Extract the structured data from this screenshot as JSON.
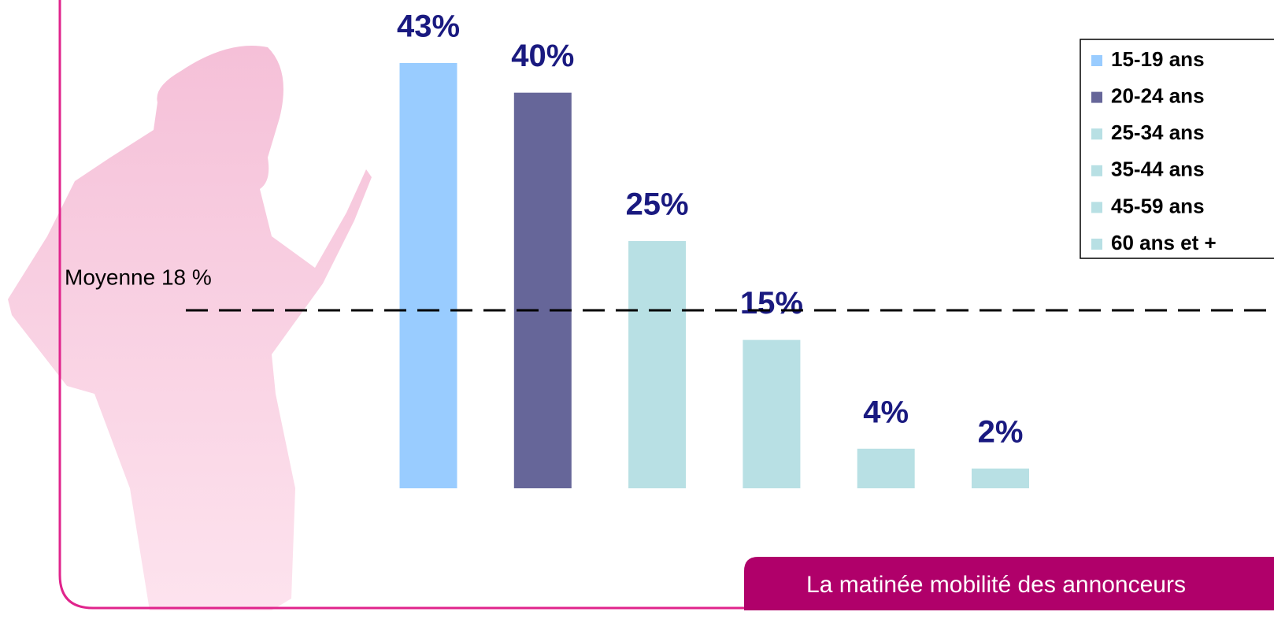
{
  "chart_data": {
    "type": "bar",
    "categories": [
      "15-19 ans",
      "20-24 ans",
      "25-34 ans",
      "35-44 ans",
      "45-59 ans",
      "60 ans et +"
    ],
    "values": [
      43,
      40,
      25,
      15,
      4,
      2
    ],
    "value_labels": [
      "43%",
      "40%",
      "25%",
      "15%",
      "4%",
      "2%"
    ],
    "colors": [
      "#99ccff",
      "#666699",
      "#b8e0e4",
      "#b8e0e4",
      "#b8e0e4",
      "#b8e0e4"
    ],
    "reference_line": {
      "label": "Moyenne 18 %",
      "value": 18
    },
    "footer": "La matinée mobilité des annonceurs"
  }
}
